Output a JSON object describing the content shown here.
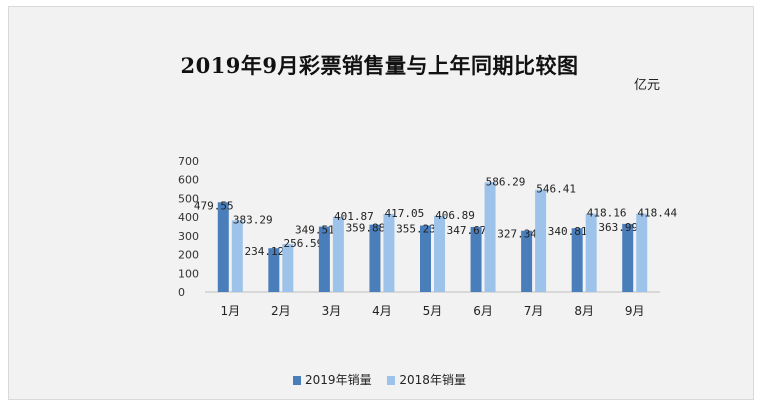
{
  "chart_data": {
    "type": "bar",
    "title": "2019年9月彩票销售量与上年同期比较图",
    "unit": "亿元",
    "categories": [
      "1月",
      "2月",
      "3月",
      "4月",
      "5月",
      "6月",
      "7月",
      "8月",
      "9月"
    ],
    "series": [
      {
        "name": "2019年销量",
        "color": "#4a7ebb",
        "values": [
          479.55,
          234.12,
          349.51,
          359.88,
          355.23,
          347.67,
          327.34,
          340.81,
          363.99
        ]
      },
      {
        "name": "2018年销量",
        "color": "#9ec3ea",
        "values": [
          383.29,
          256.59,
          401.87,
          417.05,
          406.89,
          586.29,
          546.41,
          418.16,
          418.44
        ]
      }
    ],
    "ylim": [
      0,
      700
    ],
    "yticks": [
      0,
      100,
      200,
      300,
      400,
      500,
      600,
      700
    ],
    "grid": false,
    "legend_position": "bottom"
  }
}
